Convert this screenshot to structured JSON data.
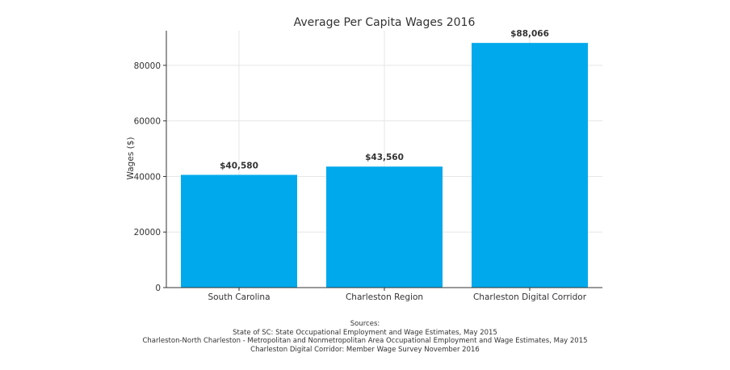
{
  "chart_data": {
    "type": "bar",
    "title": "Average Per Capita Wages 2016",
    "xlabel": "",
    "ylabel": "Wages ($)",
    "categories": [
      "South Carolina",
      "Charleston Region",
      "Charleston Digital Corridor"
    ],
    "values": [
      40580,
      43560,
      88066
    ],
    "data_labels": [
      "$40,580",
      "$43,560",
      "$88,066"
    ],
    "ylim": [
      0,
      92470
    ],
    "yticks": [
      0,
      20000,
      40000,
      60000,
      80000
    ],
    "ytick_labels": [
      "0",
      "20000",
      "40000",
      "60000",
      "80000"
    ],
    "grid": true,
    "bar_color": "#00a9ec"
  },
  "sources": {
    "heading": "Sources:",
    "lines": [
      "State of SC: State Occupational Employment and Wage Estimates, May 2015",
      "Charleston-North Charleston - Metropolitan and Nonmetropolitan Area Occupational Employment and Wage Estimates, May 2015",
      "Charleston Digital Corridor: Member Wage Survey November 2016"
    ]
  }
}
